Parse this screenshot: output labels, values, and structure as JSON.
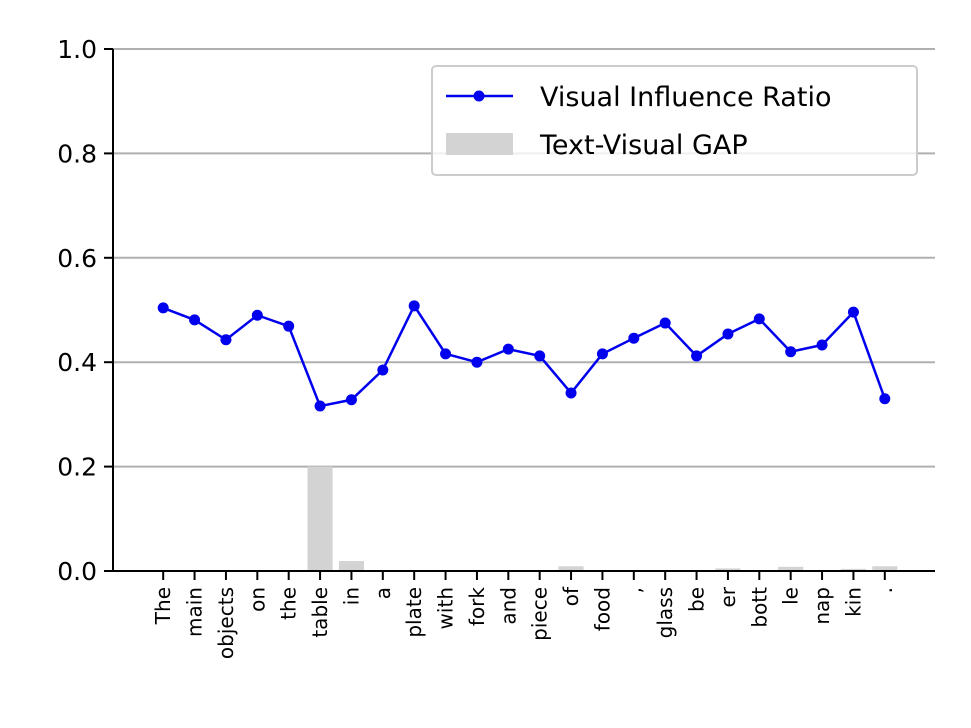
{
  "chart_data": {
    "type": "line",
    "categories": [
      "The",
      "main",
      "objects",
      "on",
      "the",
      "table",
      "in",
      "a",
      "plate",
      "with",
      "fork",
      "and",
      "piece",
      "of",
      "food",
      ",",
      "glass",
      "be",
      "er",
      "bott",
      "le",
      "nap",
      "kin",
      "."
    ],
    "series": [
      {
        "name": "Visual Influence Ratio",
        "type": "line",
        "color": "#0000ee",
        "values": [
          0.504,
          0.481,
          0.443,
          0.49,
          0.469,
          0.316,
          0.328,
          0.385,
          0.508,
          0.416,
          0.4,
          0.425,
          0.412,
          0.341,
          0.416,
          0.446,
          0.475,
          0.412,
          0.454,
          0.483,
          0.42,
          0.433,
          0.496,
          0.33
        ]
      },
      {
        "name": "Text-Visual GAP",
        "type": "bar",
        "color": "#d3d3d3",
        "values": [
          0,
          0,
          0,
          0,
          0,
          0.2,
          0.019,
          0,
          0,
          0,
          0,
          0,
          0,
          0.009,
          0,
          0,
          0,
          0,
          0.005,
          0,
          0.008,
          0,
          0.004,
          0.009
        ]
      }
    ],
    "ylim": [
      0,
      1.0
    ],
    "yticks": [
      {
        "value": 0,
        "label": "0.0"
      },
      {
        "value": 0.2,
        "label": "0.2"
      },
      {
        "value": 0.4,
        "label": "0.4"
      },
      {
        "value": 0.6,
        "label": "0.6"
      },
      {
        "value": 0.8,
        "label": "0.8"
      },
      {
        "value": 1.0,
        "label": "1.0"
      }
    ],
    "grid": true,
    "legend": "upper right"
  }
}
